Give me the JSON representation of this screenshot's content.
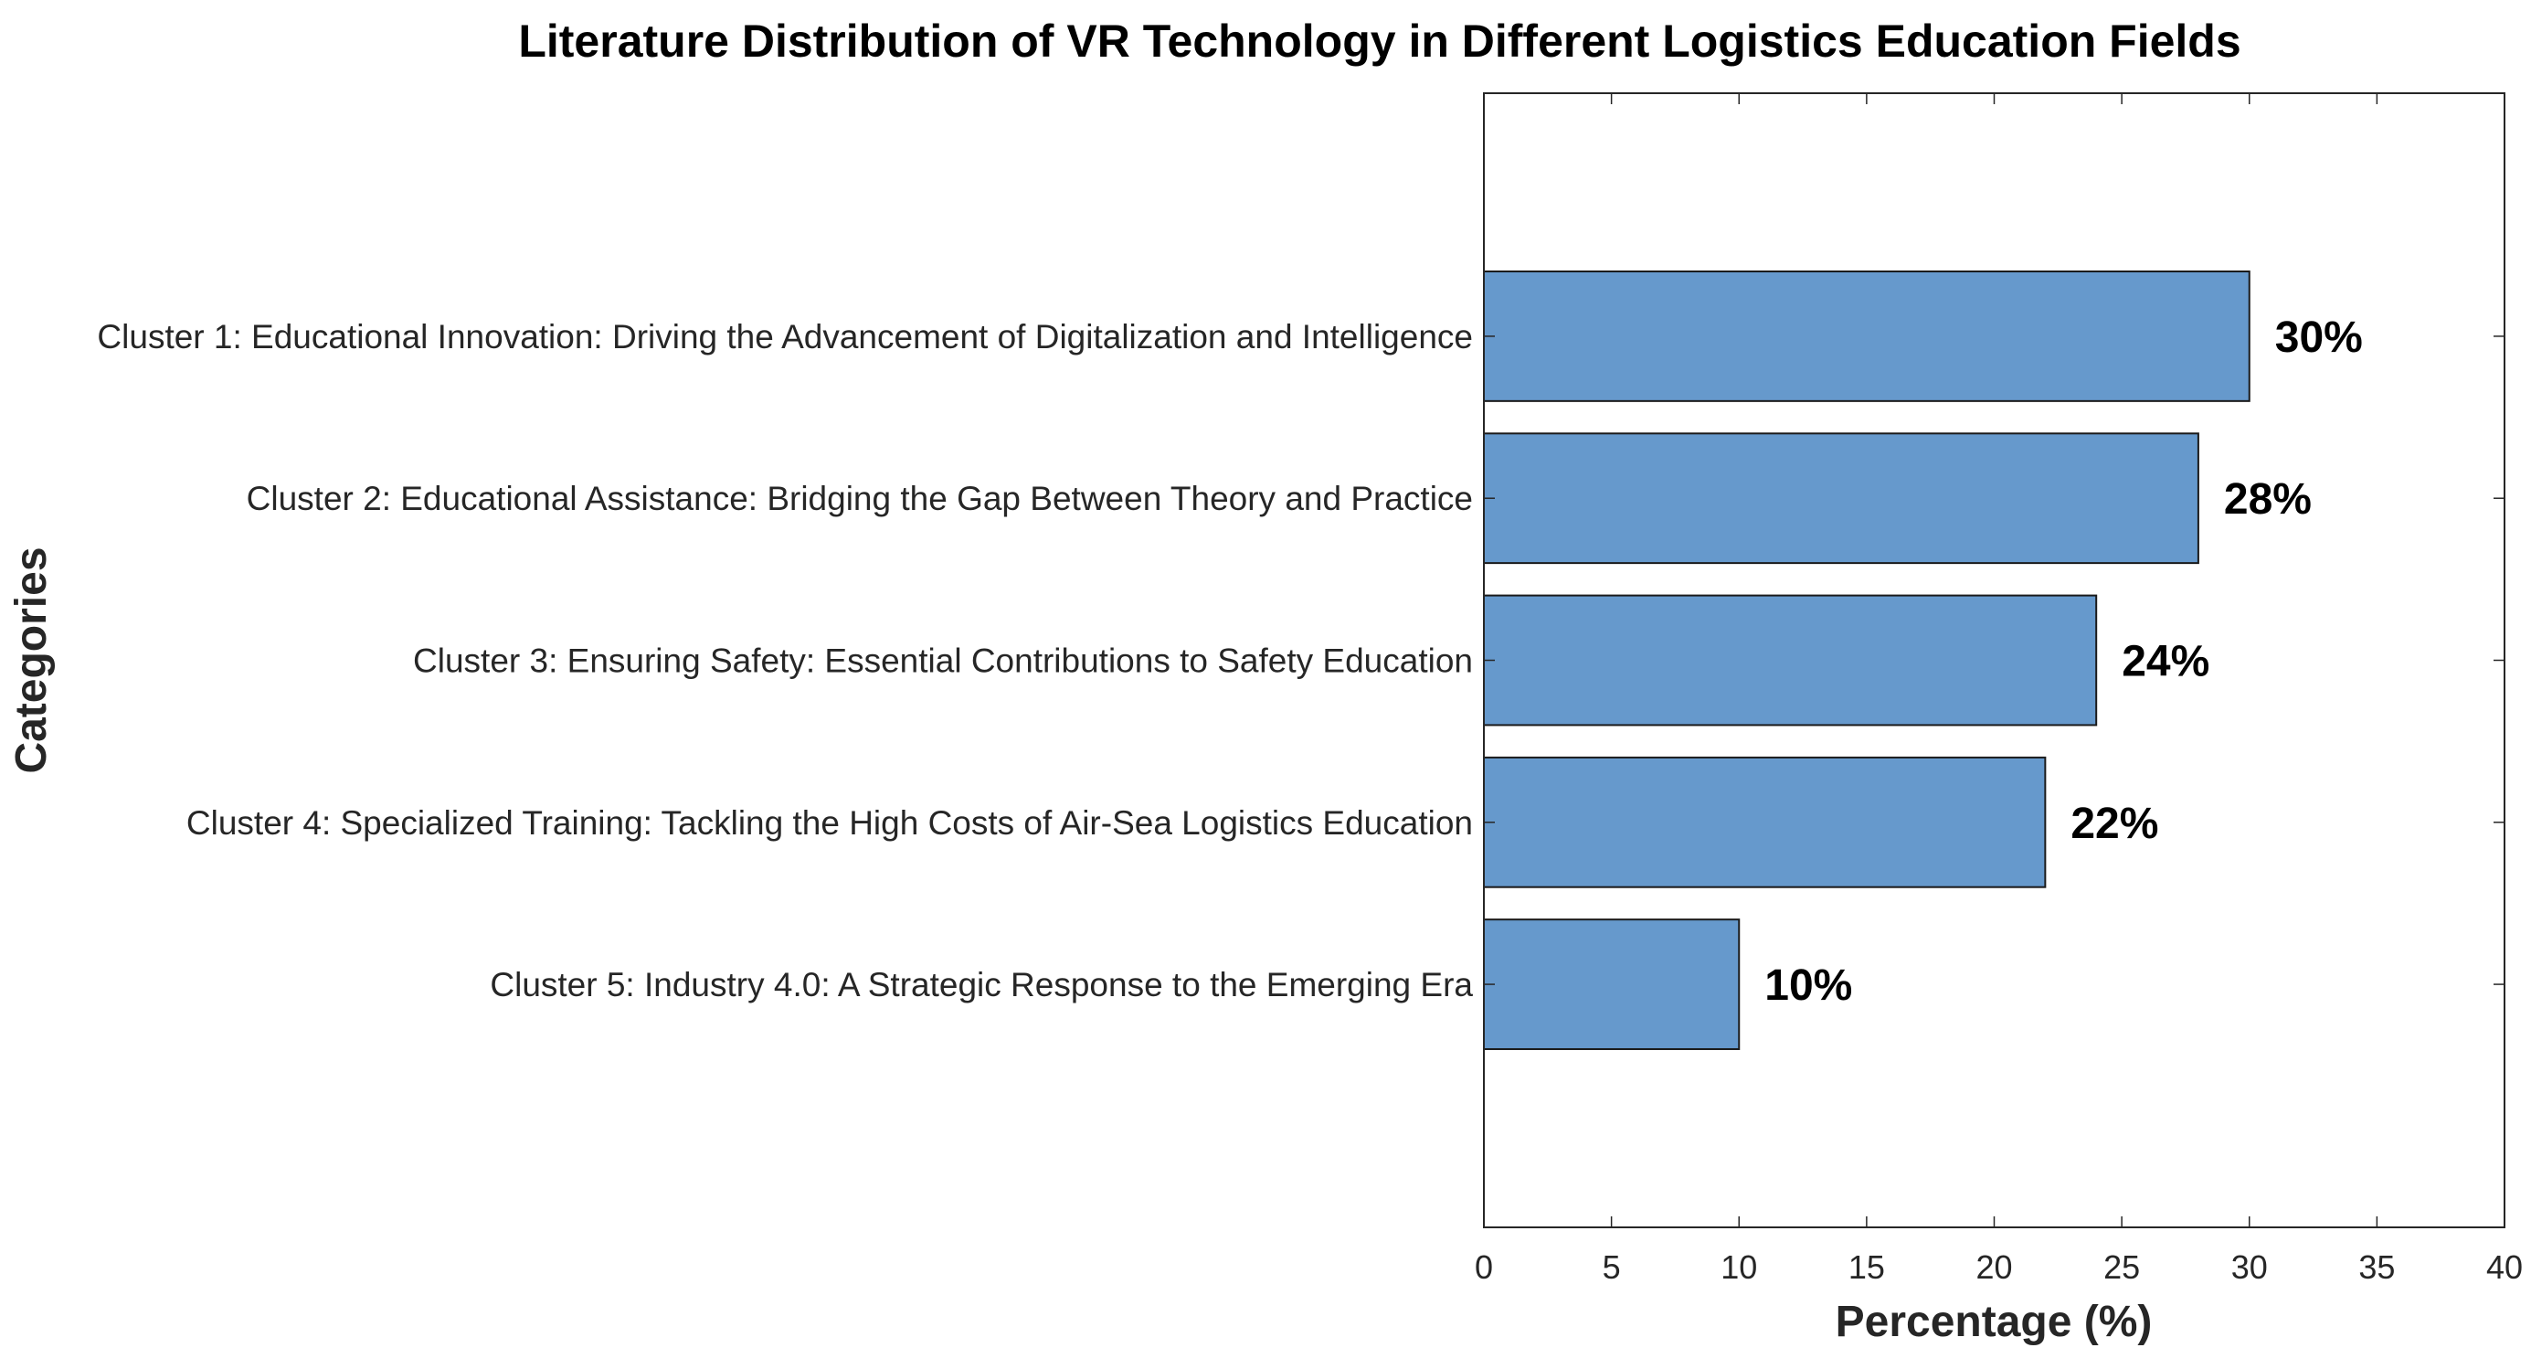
{
  "chart_data": {
    "type": "bar",
    "orientation": "horizontal",
    "title": "Literature Distribution of VR Technology in Different Logistics Education Fields",
    "xlabel": "Percentage (%)",
    "ylabel": "Categories",
    "categories": [
      "Cluster 1: Educational Innovation: Driving the Advancement of Digitalization and Intelligence",
      "Cluster 2: Educational Assistance: Bridging the Gap Between Theory and Practice",
      "Cluster 3: Ensuring Safety: Essential Contributions to Safety Education",
      "Cluster 4: Specialized Training: Tackling the High Costs of Air-Sea Logistics Education",
      "Cluster 5: Industry 4.0: A Strategic Response to the Emerging Era"
    ],
    "values": [
      30,
      28,
      24,
      22,
      10
    ],
    "value_labels": [
      "30%",
      "28%",
      "24%",
      "22%",
      "10%"
    ],
    "xlim": [
      0,
      40
    ],
    "xticks": [
      "0",
      "5",
      "10",
      "15",
      "20",
      "25",
      "30",
      "35",
      "40"
    ],
    "grid": false,
    "legend": "none",
    "colors": {
      "bar": "#6699cc",
      "bar_edge": "#1a1a1a",
      "axis": "#262626"
    }
  }
}
